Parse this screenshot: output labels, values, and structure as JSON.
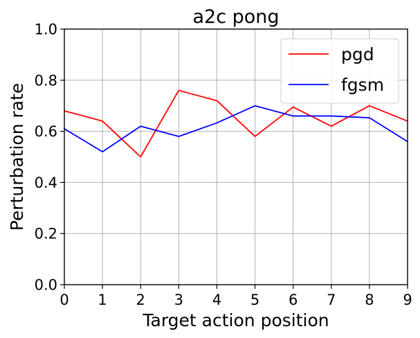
{
  "chart_data": {
    "type": "line",
    "title": "a2c pong",
    "xlabel": "Target action position",
    "ylabel": "Perturbation rate",
    "x": [
      0,
      1,
      2,
      3,
      4,
      5,
      6,
      7,
      8,
      9
    ],
    "xlim": [
      0,
      9
    ],
    "ylim": [
      0.0,
      1.0
    ],
    "xticks": [
      "0",
      "1",
      "2",
      "3",
      "4",
      "5",
      "6",
      "7",
      "8",
      "9"
    ],
    "yticks": [
      "0.0",
      "0.2",
      "0.4",
      "0.6",
      "0.8",
      "1.0"
    ],
    "grid": true,
    "legend_position": "top-right",
    "series": [
      {
        "name": "pgd",
        "color": "#ff0000",
        "values": [
          0.68,
          0.64,
          0.5,
          0.76,
          0.72,
          0.58,
          0.695,
          0.62,
          0.7,
          0.64
        ]
      },
      {
        "name": "fgsm",
        "color": "#0000ff",
        "values": [
          0.61,
          0.52,
          0.62,
          0.58,
          0.633,
          0.7,
          0.66,
          0.66,
          0.653,
          0.56
        ]
      }
    ]
  }
}
